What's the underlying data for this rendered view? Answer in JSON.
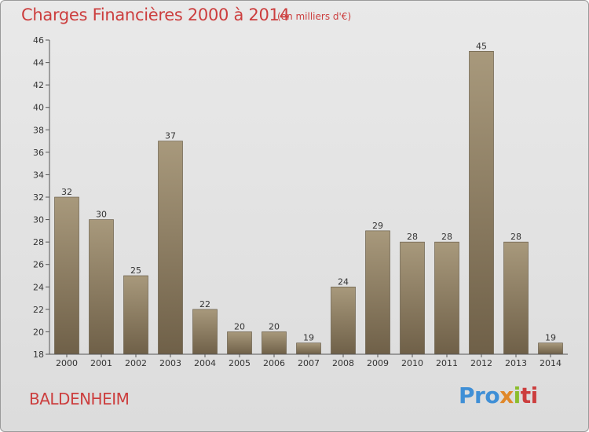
{
  "header": {
    "title": "Charges Financières 2000 à 2014",
    "subtitle": "(en milliers d'€)"
  },
  "footer": {
    "city": "BALDENHEIM",
    "logo": [
      "Pro",
      "x",
      "i",
      "ti"
    ]
  },
  "colors": {
    "title": "#cc3e3e",
    "bar_top": "#a8997c",
    "bar_bottom": "#6f6048"
  },
  "chart_data": {
    "type": "bar",
    "categories": [
      "2000",
      "2001",
      "2002",
      "2003",
      "2004",
      "2005",
      "2006",
      "2007",
      "2008",
      "2009",
      "2010",
      "2011",
      "2012",
      "2013",
      "2014"
    ],
    "values": [
      32,
      30,
      25,
      37,
      22,
      20,
      20,
      19,
      24,
      29,
      28,
      28,
      45,
      28,
      19
    ],
    "ylim": [
      18,
      46
    ],
    "yticks": [
      18,
      20,
      22,
      24,
      26,
      28,
      30,
      32,
      34,
      36,
      38,
      40,
      42,
      44,
      46
    ],
    "grid": false,
    "show_value_labels": true
  }
}
